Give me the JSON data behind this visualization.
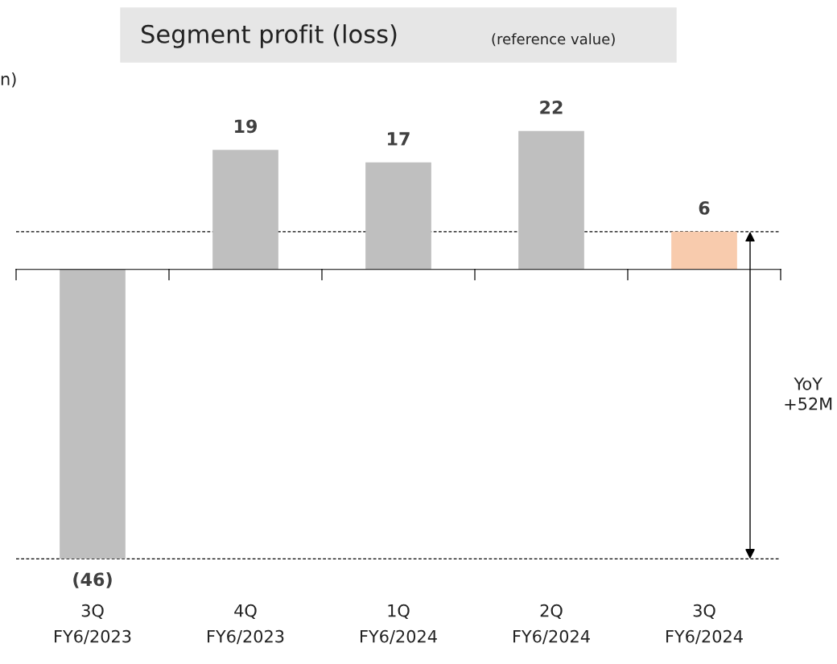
{
  "chart_data": {
    "type": "bar",
    "title": "Segment profit (loss)",
    "subtitle": "(reference value)",
    "categories": [
      "3Q\nFY6/2023",
      "4Q\nFY6/2023",
      "1Q\nFY6/2024",
      "2Q\nFY6/2024",
      "3Q\nFY6/2024"
    ],
    "values": [
      -46,
      19,
      17,
      22,
      6
    ],
    "colors": [
      "#bfbfbf",
      "#bfbfbf",
      "#bfbfbf",
      "#bfbfbf",
      "#f8cbad"
    ],
    "value_labels": [
      "(46)",
      "19",
      "17",
      "22",
      "6"
    ],
    "ref_lines": [
      {
        "axis": "y",
        "value": 6,
        "line_style": "dashed",
        "color": "#000000"
      },
      {
        "axis": "y",
        "value": -46,
        "line_style": "dashed",
        "color": "#000000"
      }
    ],
    "annotations": [
      "n)",
      "YoY\n+52M"
    ]
  }
}
